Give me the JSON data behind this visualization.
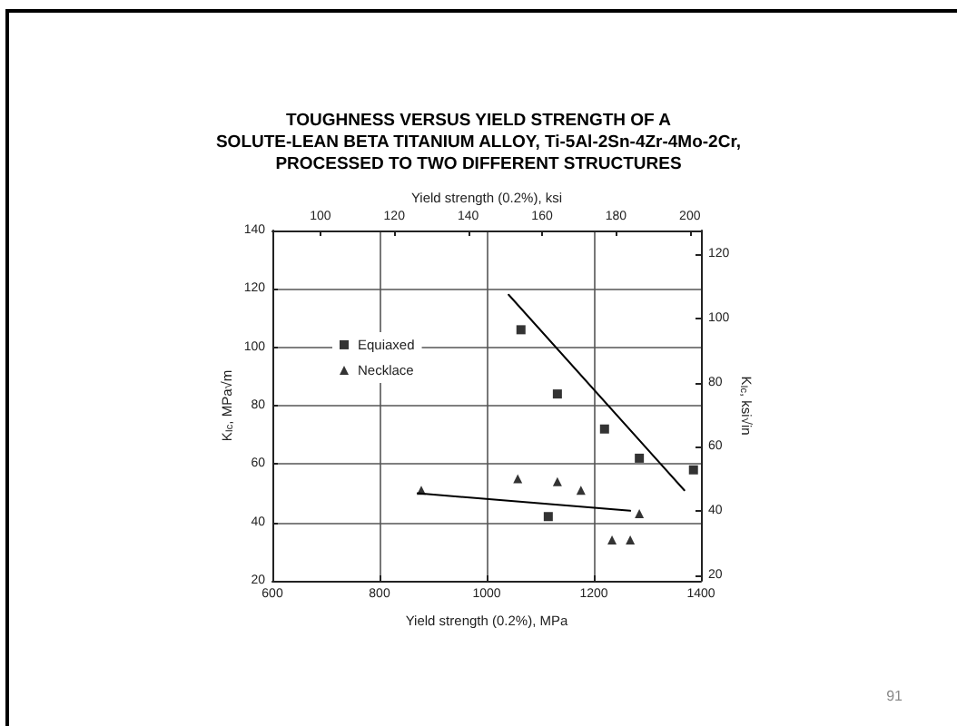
{
  "chart_data": {
    "type": "scatter",
    "title": "TOUGHNESS VERSUS YIELD STRENGTH OF A\nSOLUTE-LEAN BETA TITANIUM ALLOY, Ti-5Al-2Sn-4Zr-4Mo-2Cr,\nPROCESSED TO TWO DIFFERENT STRUCTURES",
    "xlabel": "Yield strength (0.2%), MPa",
    "x2label": "Yield strength (0.2%), ksi",
    "ylabel": "K$_{Ic}$, MPa√m",
    "y2label": "K$_{Ic}$, ksi√in",
    "xlim": [
      600,
      1400
    ],
    "xticks": [
      600,
      800,
      1000,
      1200,
      1400
    ],
    "x2lim": [
      87,
      203
    ],
    "x2ticks": [
      100,
      120,
      140,
      160,
      180,
      200
    ],
    "ylim": [
      20,
      140
    ],
    "yticks": [
      20,
      40,
      60,
      80,
      100,
      120,
      140
    ],
    "y2lim": [
      18.2,
      127.4
    ],
    "y2ticks": [
      20,
      40,
      60,
      80,
      100,
      120
    ],
    "grid": true,
    "legend": "left",
    "series": [
      {
        "name": "Equiaxed",
        "marker": "square",
        "color": "#000000",
        "x": [
          1064,
          1115,
          1132,
          1220,
          1285,
          1386
        ],
        "values": [
          106,
          42,
          84,
          72,
          62,
          58
        ]
      },
      {
        "name": "Necklace",
        "marker": "triangle",
        "color": "#000000",
        "x": [
          878,
          1058,
          1132,
          1176,
          1234,
          1268,
          1285
        ],
        "values": [
          51,
          55,
          54,
          51,
          34,
          34,
          43
        ]
      },
      {
        "type": "line",
        "marker": "none",
        "line_style": "solid",
        "color": "#000000",
        "x": [
          1041,
          1369
        ],
        "values": [
          118,
          51
        ]
      },
      {
        "type": "line",
        "marker": "none",
        "line_style": "solid",
        "color": "#000000",
        "x": [
          871,
          1268
        ],
        "values": [
          50,
          44
        ]
      }
    ],
    "annotations": [
      "91"
    ]
  }
}
